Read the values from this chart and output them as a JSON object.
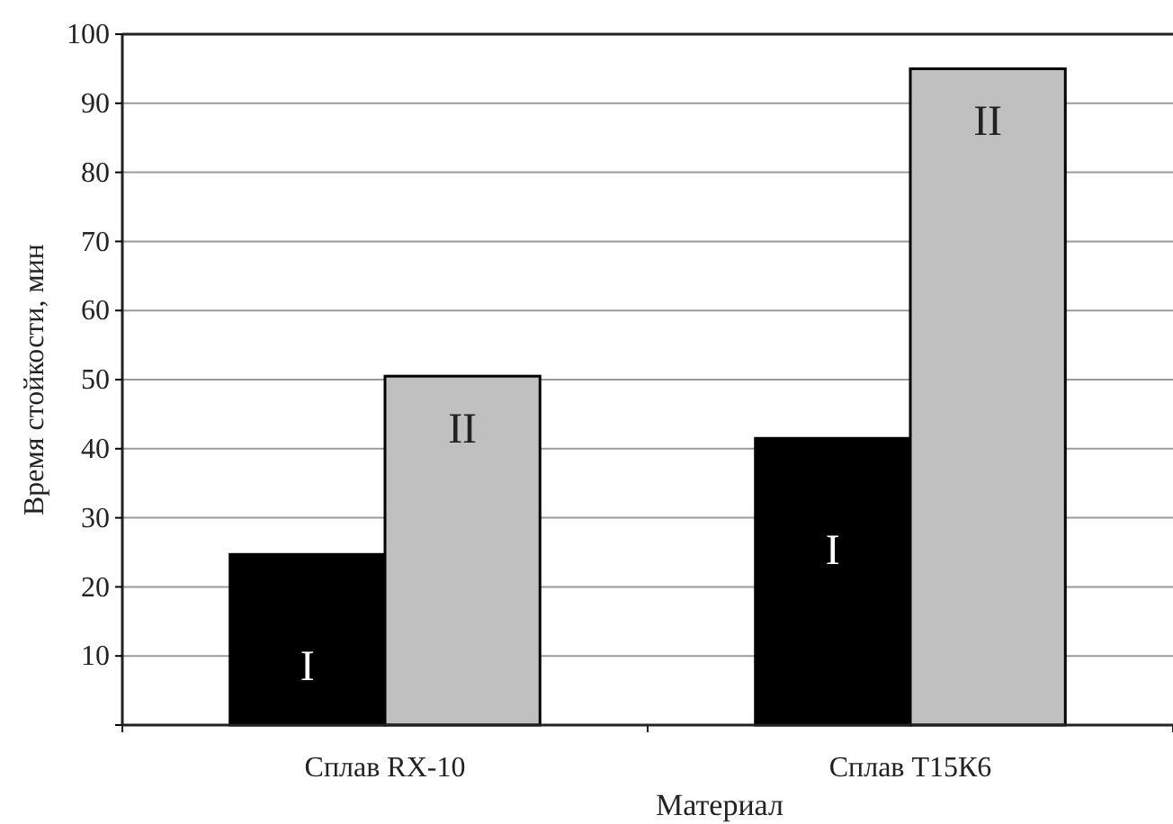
{
  "chart_data": {
    "type": "bar",
    "categories": [
      "Сплав RX-10",
      "Сплав Т15К6"
    ],
    "series": [
      {
        "name": "I",
        "color": "#000000",
        "values": [
          24.7,
          41.5
        ]
      },
      {
        "name": "II",
        "color": "#c0c0c0",
        "values": [
          50.5,
          95
        ]
      }
    ],
    "xlabel": "Материал",
    "ylabel": "Время стойкости, мин",
    "ylim": [
      0,
      100
    ],
    "yticks": [
      {
        "value": 0,
        "label": null
      },
      10,
      20,
      30,
      40,
      50,
      60,
      70,
      80,
      90,
      100
    ],
    "grid": "y"
  }
}
